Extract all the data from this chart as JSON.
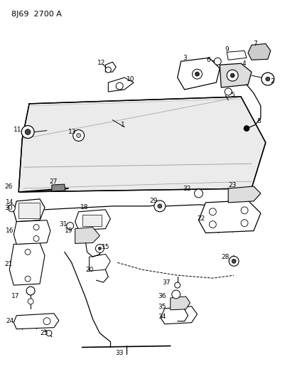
{
  "title": "8J69  2700 A",
  "bg_color": "#ffffff",
  "line_color": "#000000",
  "fig_width": 4.01,
  "fig_height": 5.33,
  "dpi": 100
}
